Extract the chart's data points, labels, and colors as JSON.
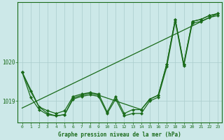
{
  "background_color": "#cce8e8",
  "plot_bg_color": "#cce8e8",
  "grid_color": "#aacccc",
  "line_color": "#1a6b1a",
  "xlabel": "Graphe pression niveau de la mer (hPa)",
  "ylim_min": 1018.45,
  "ylim_max": 1021.55,
  "yticks": [
    1019,
    1020
  ],
  "xticks": [
    0,
    1,
    2,
    3,
    4,
    5,
    6,
    7,
    8,
    9,
    10,
    11,
    12,
    13,
    14,
    15,
    16,
    17,
    18,
    19,
    20,
    21,
    22,
    23
  ],
  "series": [
    {
      "x": [
        0,
        1,
        2,
        3,
        4,
        5,
        6,
        7,
        8,
        9,
        10,
        11,
        12,
        13,
        14,
        15,
        16,
        17,
        18,
        19,
        20,
        21,
        22,
        23
      ],
      "y": [
        1019.75,
        1019.25,
        1018.85,
        1018.75,
        1018.68,
        1018.75,
        1019.12,
        1019.18,
        1019.22,
        1019.18,
        1018.72,
        1019.12,
        1018.68,
        1018.78,
        1018.78,
        1019.05,
        1019.15,
        1019.95,
        1021.1,
        1019.95,
        1021.05,
        1021.1,
        1021.2,
        1021.25
      ]
    },
    {
      "x": [
        0,
        1,
        2,
        3,
        4,
        5,
        6,
        7,
        8,
        9,
        10,
        11,
        12,
        13,
        14,
        15,
        16,
        17,
        18,
        19,
        20,
        21,
        22,
        23
      ],
      "y": [
        1019.75,
        1019.1,
        1018.78,
        1018.65,
        1018.62,
        1018.65,
        1019.05,
        1019.12,
        1019.16,
        1019.12,
        1018.68,
        1019.05,
        1018.62,
        1018.68,
        1018.68,
        1019.0,
        1019.1,
        1019.88,
        1021.05,
        1019.9,
        1021.0,
        1021.05,
        1021.15,
        1021.2
      ]
    },
    {
      "x": [
        0,
        2,
        3,
        4,
        5,
        6,
        7,
        8,
        9,
        14,
        15,
        16,
        17,
        18,
        19,
        20,
        21,
        22,
        23
      ],
      "y": [
        1019.75,
        1018.85,
        1018.68,
        1018.62,
        1018.65,
        1019.08,
        1019.15,
        1019.2,
        1019.15,
        1018.78,
        1019.05,
        1019.15,
        1019.95,
        1021.1,
        1019.95,
        1021.05,
        1021.1,
        1021.2,
        1021.25
      ]
    },
    {
      "x": [
        0,
        23
      ],
      "y": [
        1018.82,
        1021.25
      ],
      "no_markers": true
    }
  ]
}
